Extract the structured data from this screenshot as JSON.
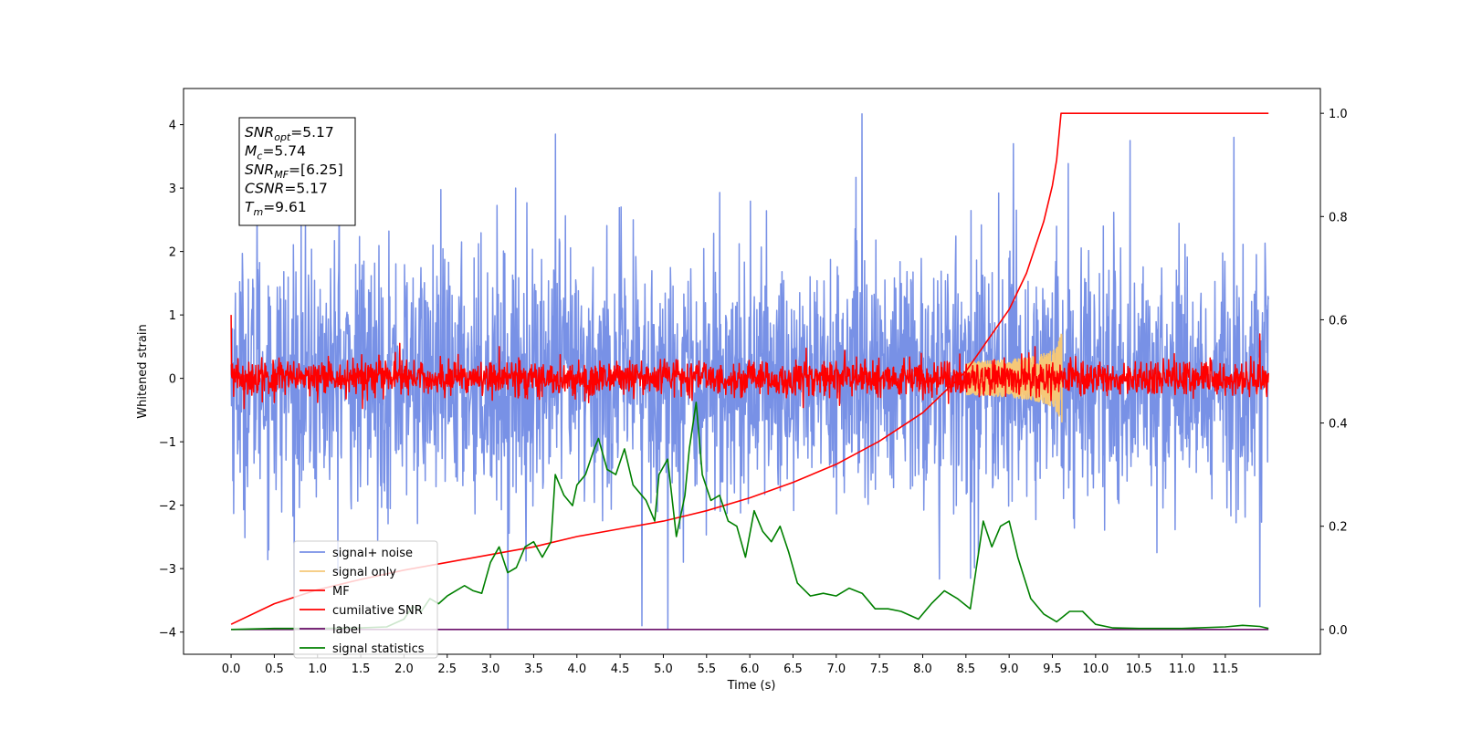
{
  "chart_data": {
    "type": "line",
    "xlabel": "Time (s)",
    "ylabel": "Whitened strain",
    "xlim": [
      -0.55,
      12.6
    ],
    "ylim": [
      -4.35,
      4.57
    ],
    "y2lim": [
      -0.048,
      1.048
    ],
    "xticks": [
      0.0,
      0.5,
      1.0,
      1.5,
      2.0,
      2.5,
      3.0,
      3.5,
      4.0,
      4.5,
      5.0,
      5.5,
      6.0,
      6.5,
      7.0,
      7.5,
      8.0,
      8.5,
      9.0,
      9.5,
      10.0,
      10.5,
      11.0,
      11.5
    ],
    "xtick_labels": [
      "0.0",
      "0.5",
      "1.0",
      "1.5",
      "2.0",
      "2.5",
      "3.0",
      "3.5",
      "4.0",
      "4.5",
      "5.0",
      "5.5",
      "6.0",
      "6.5",
      "7.0",
      "7.5",
      "8.0",
      "8.5",
      "9.0",
      "9.5",
      "10.0",
      "10.5",
      "11.0",
      "11.5"
    ],
    "yticks": [
      4,
      3,
      2,
      1,
      0,
      -1,
      -2,
      -3,
      -4
    ],
    "ytick_labels": [
      "4",
      "3",
      "2",
      "1",
      "0",
      "−1",
      "−2",
      "−3",
      "−4"
    ],
    "y2ticks": [
      1.0,
      0.8,
      0.6,
      0.4,
      0.2,
      0.0
    ],
    "y2tick_labels": [
      "1.0",
      "0.8",
      "0.6",
      "0.4",
      "0.2",
      "0.0"
    ],
    "grid": false,
    "legend_position": "lower-left",
    "info_box": {
      "lines": [
        {
          "main": "SNR",
          "sub": "opt",
          "rest": "=5.17"
        },
        {
          "main": "M",
          "sub": "c",
          "rest": "=5.74"
        },
        {
          "main": "SNR",
          "sub": "MF",
          "rest": "=[6.25]"
        },
        {
          "main": "CSNR",
          "sub": "",
          "rest": "=5.17"
        },
        {
          "main": "T",
          "sub": "m",
          "rest": "=9.61"
        }
      ]
    },
    "series": [
      {
        "name": "signal+ noise",
        "color": "#7891e6",
        "axis": "left",
        "kind": "noise",
        "t_start": 0.0,
        "t_end": 12.0,
        "samples": 2400,
        "noise_std": 1.0,
        "peaks": [
          [
            0.3,
            2.9
          ],
          [
            1.25,
            3.05
          ],
          [
            3.75,
            3.85
          ],
          [
            7.3,
            4.17
          ],
          [
            9.05,
            3.7
          ],
          [
            10.4,
            3.75
          ],
          [
            11.6,
            3.8
          ],
          [
            3.2,
            -3.95
          ],
          [
            4.75,
            -3.9
          ],
          [
            5.05,
            -3.95
          ],
          [
            11.9,
            -3.6
          ]
        ]
      },
      {
        "name": "signal only",
        "color": "#f5c878",
        "axis": "left",
        "kind": "chirp",
        "t_start": 8.5,
        "t_end": 9.61,
        "amplitude_end": 0.7
      },
      {
        "name": "MF",
        "color": "#ff0000",
        "axis": "left",
        "kind": "noise",
        "t_start": 0.0,
        "t_end": 12.0,
        "samples": 2400,
        "noise_std": 0.14,
        "peaks": [
          [
            0.0,
            1.0
          ],
          [
            1.95,
            0.55
          ],
          [
            3.1,
            0.5
          ],
          [
            9.3,
            0.5
          ],
          [
            11.9,
            0.7
          ]
        ]
      },
      {
        "name": "cumilative SNR",
        "color": "#ff0000",
        "axis": "right",
        "kind": "line",
        "points": [
          [
            0.0,
            0.01
          ],
          [
            0.5,
            0.05
          ],
          [
            1.0,
            0.077
          ],
          [
            1.5,
            0.097
          ],
          [
            2.0,
            0.115
          ],
          [
            2.5,
            0.13
          ],
          [
            3.0,
            0.145
          ],
          [
            3.5,
            0.16
          ],
          [
            4.0,
            0.18
          ],
          [
            4.5,
            0.195
          ],
          [
            5.0,
            0.21
          ],
          [
            5.5,
            0.23
          ],
          [
            6.0,
            0.255
          ],
          [
            6.5,
            0.285
          ],
          [
            7.0,
            0.32
          ],
          [
            7.5,
            0.365
          ],
          [
            8.0,
            0.42
          ],
          [
            8.5,
            0.5
          ],
          [
            9.0,
            0.62
          ],
          [
            9.2,
            0.69
          ],
          [
            9.4,
            0.79
          ],
          [
            9.5,
            0.86
          ],
          [
            9.55,
            0.91
          ],
          [
            9.6,
            1.0
          ],
          [
            10.0,
            1.0
          ],
          [
            11.0,
            1.0
          ],
          [
            12.0,
            1.0
          ]
        ]
      },
      {
        "name": "label",
        "color": "#6a0f6a",
        "axis": "right",
        "kind": "line",
        "points": [
          [
            0.0,
            0.0
          ],
          [
            12.0,
            0.0
          ]
        ]
      },
      {
        "name": "signal statistics",
        "color": "#008000",
        "axis": "right",
        "kind": "line",
        "points": [
          [
            0.0,
            0.0
          ],
          [
            0.5,
            0.002
          ],
          [
            1.0,
            0.002
          ],
          [
            1.5,
            0.003
          ],
          [
            1.8,
            0.005
          ],
          [
            2.0,
            0.02
          ],
          [
            2.1,
            0.045
          ],
          [
            2.2,
            0.035
          ],
          [
            2.3,
            0.06
          ],
          [
            2.4,
            0.05
          ],
          [
            2.5,
            0.065
          ],
          [
            2.6,
            0.075
          ],
          [
            2.7,
            0.085
          ],
          [
            2.8,
            0.075
          ],
          [
            2.9,
            0.07
          ],
          [
            3.0,
            0.13
          ],
          [
            3.1,
            0.16
          ],
          [
            3.2,
            0.11
          ],
          [
            3.3,
            0.12
          ],
          [
            3.4,
            0.16
          ],
          [
            3.5,
            0.17
          ],
          [
            3.6,
            0.14
          ],
          [
            3.7,
            0.17
          ],
          [
            3.75,
            0.3
          ],
          [
            3.85,
            0.26
          ],
          [
            3.95,
            0.24
          ],
          [
            4.0,
            0.28
          ],
          [
            4.1,
            0.3
          ],
          [
            4.2,
            0.35
          ],
          [
            4.25,
            0.37
          ],
          [
            4.35,
            0.31
          ],
          [
            4.45,
            0.3
          ],
          [
            4.55,
            0.35
          ],
          [
            4.65,
            0.28
          ],
          [
            4.75,
            0.26
          ],
          [
            4.8,
            0.25
          ],
          [
            4.9,
            0.21
          ],
          [
            4.95,
            0.3
          ],
          [
            5.05,
            0.33
          ],
          [
            5.15,
            0.18
          ],
          [
            5.25,
            0.26
          ],
          [
            5.3,
            0.35
          ],
          [
            5.38,
            0.44
          ],
          [
            5.45,
            0.3
          ],
          [
            5.55,
            0.25
          ],
          [
            5.65,
            0.26
          ],
          [
            5.75,
            0.21
          ],
          [
            5.85,
            0.2
          ],
          [
            5.95,
            0.14
          ],
          [
            6.05,
            0.23
          ],
          [
            6.15,
            0.19
          ],
          [
            6.25,
            0.17
          ],
          [
            6.35,
            0.2
          ],
          [
            6.45,
            0.15
          ],
          [
            6.55,
            0.09
          ],
          [
            6.7,
            0.065
          ],
          [
            6.85,
            0.07
          ],
          [
            7.0,
            0.065
          ],
          [
            7.15,
            0.08
          ],
          [
            7.3,
            0.07
          ],
          [
            7.45,
            0.04
          ],
          [
            7.6,
            0.04
          ],
          [
            7.75,
            0.035
          ],
          [
            7.95,
            0.02
          ],
          [
            8.1,
            0.05
          ],
          [
            8.25,
            0.075
          ],
          [
            8.4,
            0.06
          ],
          [
            8.55,
            0.04
          ],
          [
            8.7,
            0.21
          ],
          [
            8.8,
            0.16
          ],
          [
            8.9,
            0.2
          ],
          [
            9.0,
            0.21
          ],
          [
            9.1,
            0.14
          ],
          [
            9.25,
            0.06
          ],
          [
            9.4,
            0.03
          ],
          [
            9.55,
            0.015
          ],
          [
            9.7,
            0.035
          ],
          [
            9.85,
            0.035
          ],
          [
            10.0,
            0.01
          ],
          [
            10.2,
            0.003
          ],
          [
            10.5,
            0.002
          ],
          [
            11.0,
            0.002
          ],
          [
            11.5,
            0.005
          ],
          [
            11.7,
            0.008
          ],
          [
            11.9,
            0.006
          ],
          [
            12.0,
            0.002
          ]
        ]
      }
    ]
  }
}
